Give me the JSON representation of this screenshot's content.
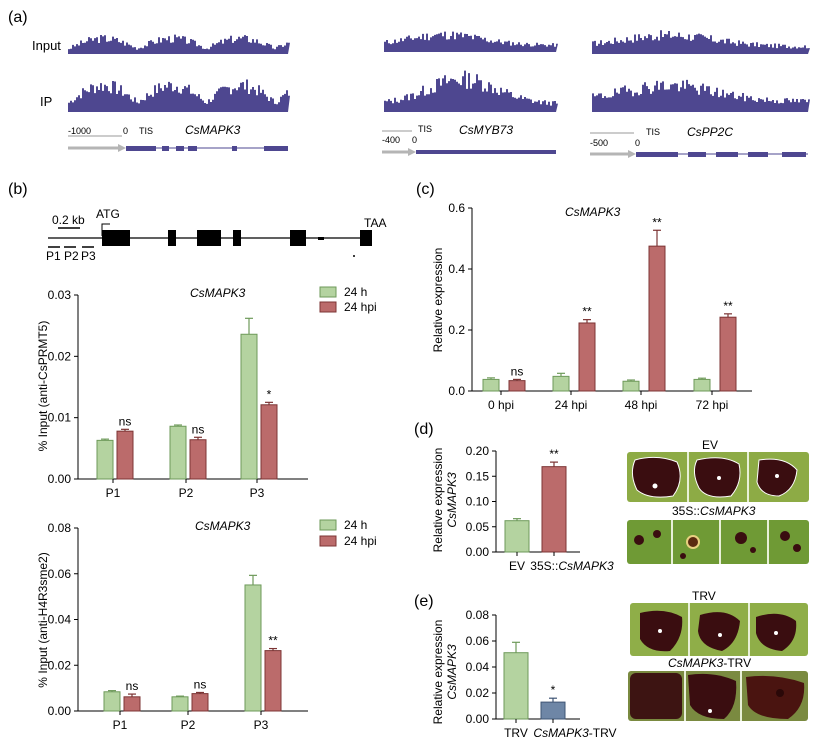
{
  "colors": {
    "green": "#b4d3a0",
    "green_edge": "#6e9a5a",
    "red": "#bb6b6b",
    "red_edge": "#7c3434",
    "blue_gray": "#6e86a6",
    "track": "#4e4790",
    "gene": "#4e4790",
    "axis": "#000000",
    "leaf_bg": "#8dab45",
    "lesion": "#3a0d10"
  },
  "panel_a": {
    "label": "(a)",
    "row_labels": [
      "Input",
      "IP"
    ],
    "loci": [
      {
        "gene": "CsMAPK3",
        "tis": "TIS",
        "scale_left": "-1000",
        "scale_right": "0"
      },
      {
        "gene": "CsMYB73",
        "tis": "TIS",
        "scale_left": "-400",
        "scale_right": "0"
      },
      {
        "gene": "CsPP2C",
        "tis": "TIS",
        "scale_left": "-500",
        "scale_right": "0"
      }
    ]
  },
  "panel_b": {
    "label": "(b)",
    "gene_model": {
      "scale": "0.2 kb",
      "start": "ATG",
      "end": "TAA",
      "primers": [
        "P1",
        "P2",
        "P3"
      ]
    },
    "charts": [
      {
        "type": "bar",
        "title": "CsMAPK3",
        "ylabel": "% Input (anti-CsPRMT5)",
        "categories": [
          "P1",
          "P2",
          "P3"
        ],
        "ylim": [
          0,
          0.03
        ],
        "yticks": [
          "0.00",
          "0.01",
          "0.02",
          "0.03"
        ],
        "series": [
          {
            "name": "24 h",
            "values": [
              0.0063,
              0.0086,
              0.0236
            ],
            "errors": [
              0.0002,
              0.0002,
              0.0026
            ]
          },
          {
            "name": "24 hpi",
            "values": [
              0.0078,
              0.0064,
              0.0121
            ],
            "errors": [
              0.0003,
              0.0004,
              0.0004
            ]
          }
        ],
        "annotations": [
          "ns",
          "ns",
          "*"
        ]
      },
      {
        "type": "bar",
        "title": "CsMAPK3",
        "ylabel": "% Input (anti-H4R3sme2)",
        "categories": [
          "P1",
          "P2",
          "P3"
        ],
        "ylim": [
          0,
          0.08
        ],
        "yticks": [
          "0.00",
          "0.02",
          "0.04",
          "0.06",
          "0.08"
        ],
        "series": [
          {
            "name": "24 h",
            "values": [
              0.0084,
              0.0062,
              0.0551
            ],
            "errors": [
              0.0005,
              0.0003,
              0.0042
            ]
          },
          {
            "name": "24 hpi",
            "values": [
              0.0062,
              0.0076,
              0.0264
            ],
            "errors": [
              0.0012,
              0.0005,
              0.0009
            ]
          }
        ],
        "annotations": [
          "ns",
          "ns",
          "**"
        ]
      }
    ]
  },
  "panel_c": {
    "label": "(c)",
    "chart": {
      "type": "bar",
      "title": "CsMAPK3",
      "ylabel": "Relative expression",
      "categories": [
        "0 hpi",
        "24 hpi",
        "48 hpi",
        "72 hpi"
      ],
      "ylim": [
        0,
        0.6
      ],
      "yticks": [
        "0.0",
        "0.2",
        "0.4",
        "0.6"
      ],
      "series": [
        {
          "values": [
            0.038,
            0.048,
            0.032,
            0.038
          ],
          "errors": [
            0.005,
            0.01,
            0.004,
            0.004
          ]
        },
        {
          "values": [
            0.034,
            0.223,
            0.475,
            0.242
          ],
          "errors": [
            0.004,
            0.011,
            0.052,
            0.011
          ]
        }
      ],
      "annotations": [
        "ns",
        "**",
        "**",
        "**"
      ]
    }
  },
  "panel_d": {
    "label": "(d)",
    "chart": {
      "type": "bar",
      "ylabel": "Relative expression",
      "ylabel_gene": "CsMAPK3",
      "categories": [
        "EV",
        "35S::CsMAPK3"
      ],
      "ylim": [
        0,
        0.2
      ],
      "yticks": [
        "0.00",
        "0.05",
        "0.10",
        "0.15",
        "0.20"
      ],
      "values": [
        0.062,
        0.169
      ],
      "errors": [
        0.004,
        0.009
      ],
      "annotations": [
        "",
        "**"
      ]
    },
    "photo_labels": [
      "EV",
      "35S::",
      "CsMAPK3"
    ]
  },
  "panel_e": {
    "label": "(e)",
    "chart": {
      "type": "bar",
      "ylabel": "Relative expression",
      "ylabel_gene": "CsMAPK3",
      "categories": [
        "TRV",
        "CsMAPK3-TRV"
      ],
      "ylim": [
        0,
        0.08
      ],
      "yticks": [
        "0.00",
        "0.02",
        "0.04",
        "0.06",
        "0.08"
      ],
      "values": [
        0.051,
        0.013
      ],
      "errors": [
        0.008,
        0.003
      ],
      "annotations": [
        "",
        "*"
      ]
    },
    "photo_labels": [
      "TRV",
      "CsMAPK3",
      "-TRV"
    ]
  }
}
